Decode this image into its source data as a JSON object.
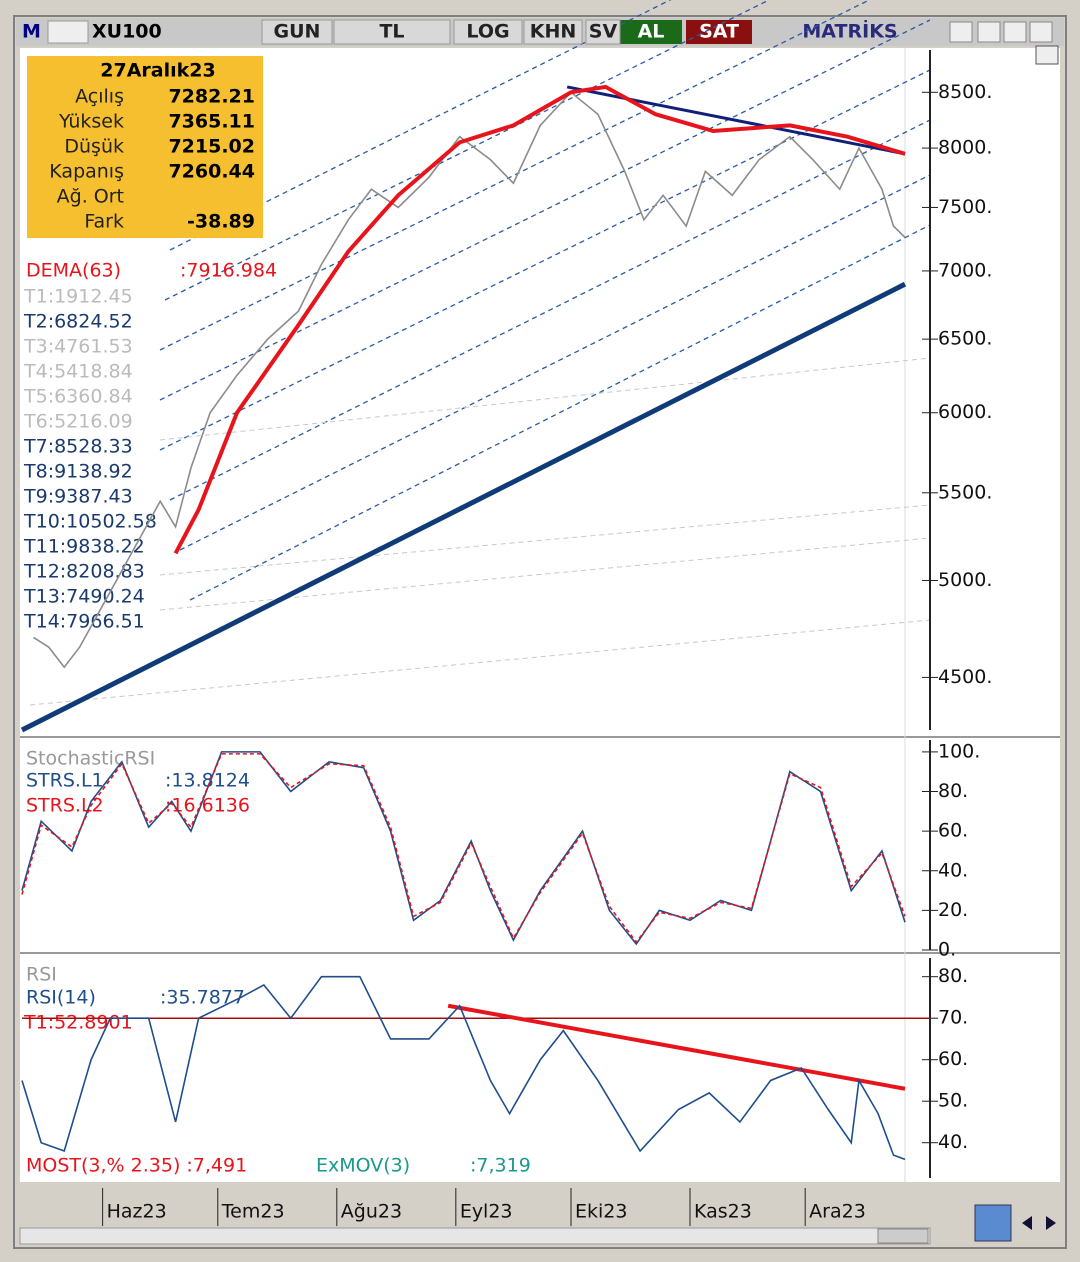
{
  "toolbar": {
    "logo": "M",
    "symbol": "XU100",
    "buttons": [
      "GUN",
      "TL",
      "LOG",
      "KHN",
      "SV"
    ],
    "buy": "AL",
    "sell": "SAT",
    "brand": "MATRİKS"
  },
  "info": {
    "date": "27Aralık23",
    "rows": [
      {
        "label": "Açılış",
        "value": "7282.21"
      },
      {
        "label": "Yüksek",
        "value": "7365.11"
      },
      {
        "label": "Düşük",
        "value": "7215.02"
      },
      {
        "label": "Kapanış",
        "value": "7260.44"
      },
      {
        "label": "Ağ. Ort",
        "value": ""
      },
      {
        "label": "Fark",
        "value": "-38.89"
      }
    ]
  },
  "xaxis": {
    "xlim": [
      0,
      230
    ],
    "xticks": [
      {
        "value": 21,
        "label": "Haz23"
      },
      {
        "value": 51,
        "label": "Tem23"
      },
      {
        "value": 82,
        "label": "Ağu23"
      },
      {
        "value": 113,
        "label": "Eyl23"
      },
      {
        "value": 143,
        "label": "Eki23"
      },
      {
        "value": 174,
        "label": "Kas23"
      },
      {
        "value": 204,
        "label": "Ara23"
      }
    ]
  },
  "main": {
    "log": true,
    "ylim": [
      4250,
      8900
    ],
    "yticks": [
      {
        "value": 8500,
        "label": "8500."
      },
      {
        "value": 8000,
        "label": "8000."
      },
      {
        "value": 7500,
        "label": "7500."
      },
      {
        "value": 7000,
        "label": "7000."
      },
      {
        "value": 6500,
        "label": "6500."
      },
      {
        "value": 6000,
        "label": "6000."
      },
      {
        "value": 5500,
        "label": "5500."
      },
      {
        "value": 5000,
        "label": "5000."
      },
      {
        "value": 4500,
        "label": "4500."
      }
    ],
    "dema_label": "DEMA(63)",
    "dema_value": ":7916.984",
    "t_labels": [
      "T1:1912.45",
      "T2:6824.52",
      "T3:4761.53",
      "T4:5418.84",
      "T5:6360.84",
      "T6:5216.09",
      "T7:8528.33",
      "T8:9138.92",
      "T9:9387.43",
      "T10:10502.58",
      "T11:9838.22",
      "T12:8208.83",
      "T13:7490.24",
      "T14:7966.51"
    ],
    "series": [
      {
        "name": "XU100",
        "color": "#8c8c8c",
        "x": [
          3,
          7,
          11,
          15,
          36,
          40,
          44,
          49,
          56,
          64,
          72,
          78,
          85,
          91,
          98,
          106,
          114,
          122,
          128,
          135,
          143,
          150,
          157,
          162,
          167,
          173,
          178,
          185,
          192,
          200,
          206,
          213,
          218,
          224,
          227,
          230
        ],
        "values": [
          4700,
          4650,
          4550,
          4650,
          5450,
          5300,
          5650,
          6000,
          6250,
          6500,
          6700,
          7050,
          7400,
          7650,
          7500,
          7750,
          8100,
          7900,
          7700,
          8200,
          8500,
          8300,
          7800,
          7400,
          7600,
          7350,
          7800,
          7600,
          7900,
          8100,
          7900,
          7650,
          8000,
          7650,
          7350,
          7260
        ]
      },
      {
        "name": "DEMA(63)",
        "color": "#e8141c",
        "x": [
          40,
          46,
          56,
          72,
          85,
          98,
          114,
          128,
          143,
          152,
          165,
          180,
          200,
          215,
          230
        ],
        "values": [
          5150,
          5400,
          6000,
          6600,
          7150,
          7600,
          8050,
          8200,
          8500,
          8550,
          8300,
          8150,
          8200,
          8100,
          7950
        ]
      }
    ],
    "trendlines": [
      {
        "color": "#0f3c78",
        "width": 5,
        "x": [
          0,
          230
        ],
        "values": [
          4250,
          6900
        ]
      },
      {
        "color": "#10207a",
        "width": 3,
        "x": [
          142,
          230
        ],
        "values": [
          8550,
          7950
        ]
      }
    ]
  },
  "stoch": {
    "title": "StochasticRSI",
    "ylim": [
      0,
      106
    ],
    "yticks": [
      {
        "value": 100,
        "label": "100."
      },
      {
        "value": 80,
        "label": "80."
      },
      {
        "value": 60,
        "label": "60."
      },
      {
        "value": 40,
        "label": "40."
      },
      {
        "value": 20,
        "label": "20."
      },
      {
        "value": 0,
        "label": "0."
      }
    ],
    "l1_label": "STRS.L1",
    "l1_value": ":13.8124",
    "l2_label": "STRS.L2",
    "l2_value": ":16.6136",
    "series": [
      {
        "name": "STRS.L1",
        "color": "#1f4e8c",
        "x": [
          0,
          5,
          13,
          18,
          26,
          33,
          39,
          44,
          52,
          62,
          70,
          80,
          89,
          96,
          102,
          109,
          117,
          122,
          128,
          135,
          146,
          153,
          160,
          166,
          174,
          182,
          190,
          200,
          208,
          216,
          224,
          230
        ],
        "values": [
          30,
          65,
          50,
          75,
          95,
          62,
          75,
          60,
          100,
          100,
          80,
          95,
          92,
          60,
          15,
          25,
          55,
          30,
          5,
          30,
          60,
          20,
          3,
          20,
          15,
          25,
          20,
          90,
          80,
          30,
          50,
          14
        ]
      },
      {
        "name": "STRS.L2",
        "color": "#e8141c",
        "x": [
          0,
          5,
          13,
          18,
          26,
          33,
          39,
          44,
          52,
          62,
          70,
          80,
          89,
          96,
          102,
          109,
          117,
          122,
          128,
          135,
          146,
          153,
          160,
          166,
          174,
          182,
          190,
          200,
          208,
          216,
          224,
          230
        ],
        "values": [
          28,
          63,
          52,
          73,
          94,
          64,
          74,
          62,
          99,
          99,
          82,
          94,
          93,
          62,
          17,
          24,
          54,
          32,
          6,
          29,
          59,
          22,
          4,
          19,
          16,
          24,
          21,
          89,
          82,
          32,
          49,
          17
        ]
      }
    ]
  },
  "rsi": {
    "title": "RSI",
    "ylim": [
      31.5,
      84.5
    ],
    "yticks": [
      {
        "value": 80,
        "label": "80."
      },
      {
        "value": 70,
        "label": "70."
      },
      {
        "value": 60,
        "label": "60."
      },
      {
        "value": 50,
        "label": "50."
      },
      {
        "value": 40,
        "label": "40."
      }
    ],
    "rsi_label": "RSI(14)",
    "rsi_value": ":35.7877",
    "t1_label": "T1:52.8901",
    "most_label": "MOST(3,% 2.35) :7,491",
    "exmov_label": "ExMOV(3)",
    "exmov_value": ":7,319",
    "level": 70,
    "level_color": "#a01010",
    "series": [
      {
        "name": "RSI(14)",
        "color": "#1f4e8c",
        "x": [
          0,
          5,
          11,
          18,
          23,
          33,
          40,
          46,
          57,
          63,
          70,
          78,
          88,
          96,
          106,
          114,
          122,
          127,
          135,
          141,
          150,
          161,
          171,
          179,
          187,
          195,
          203,
          210,
          216,
          218,
          223,
          227,
          230
        ],
        "values": [
          55,
          40,
          38,
          60,
          70,
          70,
          45,
          70,
          75,
          78,
          70,
          80,
          80,
          65,
          65,
          73,
          55,
          47,
          60,
          67,
          55,
          38,
          48,
          52,
          45,
          55,
          58,
          48,
          40,
          55,
          47,
          37,
          36
        ]
      }
    ],
    "trendlines": [
      {
        "color": "#e8141c",
        "width": 4,
        "x": [
          111,
          230
        ],
        "values": [
          73,
          53
        ]
      }
    ]
  }
}
